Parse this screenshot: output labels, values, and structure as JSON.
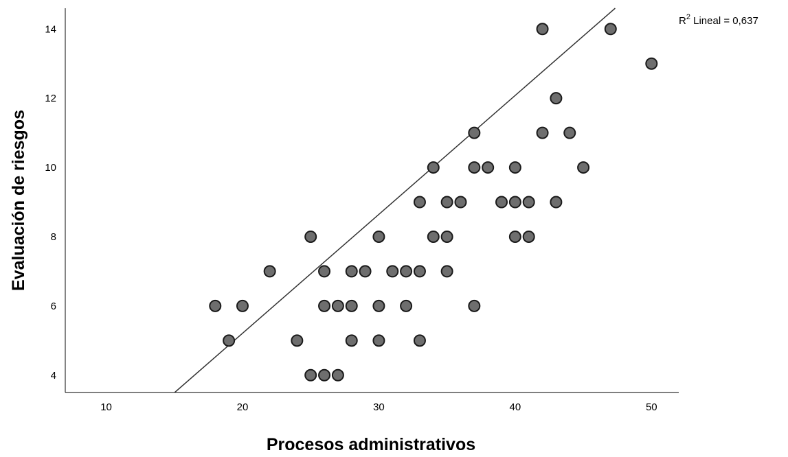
{
  "chart_data": {
    "type": "scatter",
    "title": "",
    "xlabel": "Procesos administrativos",
    "ylabel": "Evaluación de riesgos",
    "xlim": [
      7,
      52
    ],
    "ylim": [
      3.5,
      14.6
    ],
    "xticks": [
      10,
      20,
      30,
      40,
      50
    ],
    "yticks": [
      4,
      6,
      8,
      10,
      12,
      14
    ],
    "grid": false,
    "fit_line": {
      "type": "linear",
      "label_prefix": "R",
      "label_superscript": "2",
      "label_suffix": " Lineal = 0,637",
      "r_squared": 0.637,
      "intercept": -1.66,
      "slope": 0.3435
    },
    "marker": {
      "fill": "#6e6e6e",
      "stroke": "#1a1a1a"
    },
    "line_color": "#333333",
    "points": [
      [
        18,
        6
      ],
      [
        19,
        5
      ],
      [
        20,
        6
      ],
      [
        22,
        7
      ],
      [
        24,
        5
      ],
      [
        25,
        8
      ],
      [
        25,
        4
      ],
      [
        26,
        7
      ],
      [
        26,
        6
      ],
      [
        26,
        4
      ],
      [
        27,
        6
      ],
      [
        27,
        4
      ],
      [
        28,
        7
      ],
      [
        28,
        6
      ],
      [
        28,
        5
      ],
      [
        29,
        7
      ],
      [
        30,
        8
      ],
      [
        30,
        6
      ],
      [
        30,
        5
      ],
      [
        31,
        7
      ],
      [
        32,
        7
      ],
      [
        32,
        6
      ],
      [
        33,
        9
      ],
      [
        33,
        7
      ],
      [
        33,
        5
      ],
      [
        34,
        10
      ],
      [
        34,
        8
      ],
      [
        35,
        9
      ],
      [
        35,
        8
      ],
      [
        35,
        7
      ],
      [
        36,
        9
      ],
      [
        37,
        11
      ],
      [
        37,
        10
      ],
      [
        37,
        6
      ],
      [
        38,
        10
      ],
      [
        39,
        9
      ],
      [
        40,
        10
      ],
      [
        40,
        9
      ],
      [
        40,
        8
      ],
      [
        41,
        9
      ],
      [
        41,
        8
      ],
      [
        42,
        14
      ],
      [
        42,
        11
      ],
      [
        43,
        12
      ],
      [
        43,
        9
      ],
      [
        44,
        11
      ],
      [
        45,
        10
      ],
      [
        47,
        14
      ],
      [
        50,
        13
      ]
    ]
  }
}
